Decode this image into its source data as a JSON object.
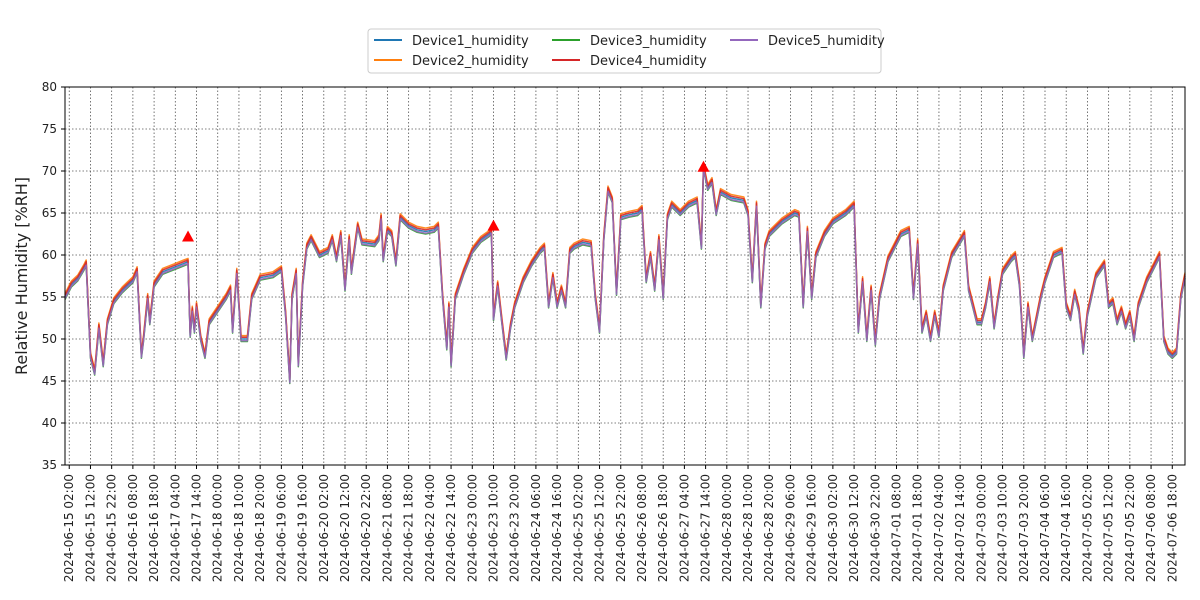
{
  "chart_data": {
    "type": "line",
    "title": "",
    "xlabel": "",
    "ylabel": "Relative Humidity [%RH]",
    "ylim": [
      35,
      80
    ],
    "yticks": [
      35,
      40,
      45,
      50,
      55,
      60,
      65,
      70,
      75,
      80
    ],
    "x_start": "2024-06-15 00:00",
    "x_end": "2024-07-07 00:00",
    "x_tick_labels": [
      "2024-06-15 02:00",
      "2024-06-15 12:00",
      "2024-06-15 22:00",
      "2024-06-16 08:00",
      "2024-06-16 18:00",
      "2024-06-17 04:00",
      "2024-06-17 14:00",
      "2024-06-18 00:00",
      "2024-06-18 10:00",
      "2024-06-18 20:00",
      "2024-06-19 06:00",
      "2024-06-19 16:00",
      "2024-06-20 02:00",
      "2024-06-20 12:00",
      "2024-06-20 22:00",
      "2024-06-21 08:00",
      "2024-06-21 18:00",
      "2024-06-22 04:00",
      "2024-06-22 14:00",
      "2024-06-23 00:00",
      "2024-06-23 10:00",
      "2024-06-23 20:00",
      "2024-06-24 06:00",
      "2024-06-24 16:00",
      "2024-06-25 02:00",
      "2024-06-25 12:00",
      "2024-06-25 22:00",
      "2024-06-26 08:00",
      "2024-06-26 18:00",
      "2024-06-27 04:00",
      "2024-06-27 14:00",
      "2024-06-28 00:00",
      "2024-06-28 10:00",
      "2024-06-28 20:00",
      "2024-06-29 06:00",
      "2024-06-29 16:00",
      "2024-06-30 02:00",
      "2024-06-30 12:00",
      "2024-06-30 22:00",
      "2024-07-01 08:00",
      "2024-07-01 18:00",
      "2024-07-02 04:00",
      "2024-07-02 14:00",
      "2024-07-03 00:00",
      "2024-07-03 10:00",
      "2024-07-03 20:00",
      "2024-07-04 06:00",
      "2024-07-04 16:00",
      "2024-07-05 02:00",
      "2024-07-05 12:00",
      "2024-07-05 22:00",
      "2024-07-06 08:00",
      "2024-07-06 18:00"
    ],
    "grid": true,
    "legend_position": "top-center",
    "base_series": [
      [
        "2024-06-15 00:00",
        55.0
      ],
      [
        "2024-06-15 03:00",
        56.5
      ],
      [
        "2024-06-15 06:00",
        57.2
      ],
      [
        "2024-06-15 09:00",
        58.5
      ],
      [
        "2024-06-15 10:00",
        59.0
      ],
      [
        "2024-06-15 12:00",
        48.0
      ],
      [
        "2024-06-15 14:00",
        46.0
      ],
      [
        "2024-06-15 16:00",
        51.5
      ],
      [
        "2024-06-15 18:00",
        47.0
      ],
      [
        "2024-06-15 20:00",
        52.0
      ],
      [
        "2024-06-15 23:00",
        54.5
      ],
      [
        "2024-06-16 03:00",
        55.8
      ],
      [
        "2024-06-16 08:00",
        57.0
      ],
      [
        "2024-06-16 10:00",
        58.2
      ],
      [
        "2024-06-16 12:00",
        48.0
      ],
      [
        "2024-06-16 13:00",
        50.0
      ],
      [
        "2024-06-16 15:00",
        55.0
      ],
      [
        "2024-06-16 16:00",
        52.0
      ],
      [
        "2024-06-16 18:00",
        56.5
      ],
      [
        "2024-06-16 22:00",
        58.0
      ],
      [
        "2024-06-17 04:00",
        58.6
      ],
      [
        "2024-06-17 08:00",
        59.0
      ],
      [
        "2024-06-17 10:00",
        59.2
      ],
      [
        "2024-06-17 11:00",
        50.5
      ],
      [
        "2024-06-17 12:00",
        53.5
      ],
      [
        "2024-06-17 13:00",
        51.0
      ],
      [
        "2024-06-17 14:00",
        54.0
      ],
      [
        "2024-06-17 16:00",
        50.0
      ],
      [
        "2024-06-17 18:00",
        48.0
      ],
      [
        "2024-06-17 20:00",
        52.0
      ],
      [
        "2024-06-18 00:00",
        53.5
      ],
      [
        "2024-06-18 04:00",
        55.0
      ],
      [
        "2024-06-18 06:00",
        56.0
      ],
      [
        "2024-06-18 07:00",
        51.0
      ],
      [
        "2024-06-18 09:00",
        58.0
      ],
      [
        "2024-06-18 11:00",
        50.0
      ],
      [
        "2024-06-18 14:00",
        50.0
      ],
      [
        "2024-06-18 16:00",
        55.0
      ],
      [
        "2024-06-18 20:00",
        57.3
      ],
      [
        "2024-06-19 02:00",
        57.6
      ],
      [
        "2024-06-19 06:00",
        58.3
      ],
      [
        "2024-06-19 08:00",
        53.0
      ],
      [
        "2024-06-19 10:00",
        45.0
      ],
      [
        "2024-06-19 11:00",
        55.0
      ],
      [
        "2024-06-19 13:00",
        58.0
      ],
      [
        "2024-06-19 14:00",
        47.0
      ],
      [
        "2024-06-19 16:00",
        56.5
      ],
      [
        "2024-06-19 18:00",
        61.0
      ],
      [
        "2024-06-19 20:00",
        62.0
      ],
      [
        "2024-06-20 00:00",
        60.0
      ],
      [
        "2024-06-20 04:00",
        60.5
      ],
      [
        "2024-06-20 06:00",
        62.0
      ],
      [
        "2024-06-20 08:00",
        59.5
      ],
      [
        "2024-06-20 10:00",
        62.5
      ],
      [
        "2024-06-20 12:00",
        56.0
      ],
      [
        "2024-06-20 14:00",
        62.0
      ],
      [
        "2024-06-20 15:00",
        58.0
      ],
      [
        "2024-06-20 18:00",
        63.5
      ],
      [
        "2024-06-20 20:00",
        61.5
      ],
      [
        "2024-06-21 02:00",
        61.3
      ],
      [
        "2024-06-21 04:00",
        62.0
      ],
      [
        "2024-06-21 05:00",
        64.5
      ],
      [
        "2024-06-21 06:00",
        59.5
      ],
      [
        "2024-06-21 08:00",
        63.0
      ],
      [
        "2024-06-21 10:00",
        62.5
      ],
      [
        "2024-06-21 12:00",
        59.0
      ],
      [
        "2024-06-21 14:00",
        64.5
      ],
      [
        "2024-06-21 18:00",
        63.5
      ],
      [
        "2024-06-21 22:00",
        63.0
      ],
      [
        "2024-06-22 02:00",
        62.8
      ],
      [
        "2024-06-22 06:00",
        63.0
      ],
      [
        "2024-06-22 08:00",
        63.5
      ],
      [
        "2024-06-22 10:00",
        55.0
      ],
      [
        "2024-06-22 12:00",
        49.0
      ],
      [
        "2024-06-22 13:00",
        54.0
      ],
      [
        "2024-06-22 14:00",
        47.0
      ],
      [
        "2024-06-22 16:00",
        55.0
      ],
      [
        "2024-06-22 20:00",
        58.0
      ],
      [
        "2024-06-23 00:00",
        60.5
      ],
      [
        "2024-06-23 04:00",
        61.8
      ],
      [
        "2024-06-23 08:00",
        62.5
      ],
      [
        "2024-06-23 09:00",
        62.8
      ],
      [
        "2024-06-23 10:00",
        52.5
      ],
      [
        "2024-06-23 12:00",
        56.5
      ],
      [
        "2024-06-23 14:00",
        52.0
      ],
      [
        "2024-06-23 16:00",
        47.8
      ],
      [
        "2024-06-23 18:00",
        51.5
      ],
      [
        "2024-06-23 20:00",
        54.0
      ],
      [
        "2024-06-24 00:00",
        57.0
      ],
      [
        "2024-06-24 04:00",
        59.0
      ],
      [
        "2024-06-24 08:00",
        60.5
      ],
      [
        "2024-06-24 10:00",
        61.0
      ],
      [
        "2024-06-24 12:00",
        54.0
      ],
      [
        "2024-06-24 14:00",
        57.5
      ],
      [
        "2024-06-24 16:00",
        54.0
      ],
      [
        "2024-06-24 18:00",
        56.0
      ],
      [
        "2024-06-24 20:00",
        54.0
      ],
      [
        "2024-06-24 22:00",
        60.5
      ],
      [
        "2024-06-25 00:00",
        61.0
      ],
      [
        "2024-06-25 04:00",
        61.5
      ],
      [
        "2024-06-25 08:00",
        61.3
      ],
      [
        "2024-06-25 10:00",
        55.0
      ],
      [
        "2024-06-25 12:00",
        51.0
      ],
      [
        "2024-06-25 14:00",
        62.0
      ],
      [
        "2024-06-25 16:00",
        67.8
      ],
      [
        "2024-06-25 18:00",
        66.5
      ],
      [
        "2024-06-25 20:00",
        55.5
      ],
      [
        "2024-06-25 22:00",
        64.5
      ],
      [
        "2024-06-26 02:00",
        64.8
      ],
      [
        "2024-06-26 06:00",
        65.0
      ],
      [
        "2024-06-26 08:00",
        65.5
      ],
      [
        "2024-06-26 10:00",
        57.0
      ],
      [
        "2024-06-26 12:00",
        60.0
      ],
      [
        "2024-06-26 14:00",
        56.0
      ],
      [
        "2024-06-26 16:00",
        62.0
      ],
      [
        "2024-06-26 18:00",
        55.0
      ],
      [
        "2024-06-26 20:00",
        64.5
      ],
      [
        "2024-06-26 22:00",
        66.0
      ],
      [
        "2024-06-27 02:00",
        65.0
      ],
      [
        "2024-06-27 06:00",
        66.0
      ],
      [
        "2024-06-27 10:00",
        66.5
      ],
      [
        "2024-06-27 12:00",
        61.0
      ],
      [
        "2024-06-27 13:00",
        70.5
      ],
      [
        "2024-06-27 15:00",
        68.0
      ],
      [
        "2024-06-27 17:00",
        68.8
      ],
      [
        "2024-06-27 19:00",
        65.0
      ],
      [
        "2024-06-27 21:00",
        67.5
      ],
      [
        "2024-06-28 02:00",
        66.8
      ],
      [
        "2024-06-28 08:00",
        66.5
      ],
      [
        "2024-06-28 10:00",
        65.0
      ],
      [
        "2024-06-28 12:00",
        57.0
      ],
      [
        "2024-06-28 14:00",
        66.0
      ],
      [
        "2024-06-28 16:00",
        54.0
      ],
      [
        "2024-06-28 18:00",
        61.0
      ],
      [
        "2024-06-28 20:00",
        62.5
      ],
      [
        "2024-06-29 02:00",
        64.0
      ],
      [
        "2024-06-29 08:00",
        65.0
      ],
      [
        "2024-06-29 10:00",
        64.8
      ],
      [
        "2024-06-29 12:00",
        54.0
      ],
      [
        "2024-06-29 14:00",
        63.0
      ],
      [
        "2024-06-29 16:00",
        55.0
      ],
      [
        "2024-06-29 18:00",
        60.0
      ],
      [
        "2024-06-29 22:00",
        62.5
      ],
      [
        "2024-06-30 02:00",
        64.0
      ],
      [
        "2024-06-30 08:00",
        65.0
      ],
      [
        "2024-06-30 12:00",
        66.0
      ],
      [
        "2024-06-30 14:00",
        51.0
      ],
      [
        "2024-06-30 16:00",
        57.0
      ],
      [
        "2024-06-30 18:00",
        50.0
      ],
      [
        "2024-06-30 20:00",
        56.0
      ],
      [
        "2024-06-30 22:00",
        49.5
      ],
      [
        "2024-07-01 00:00",
        55.0
      ],
      [
        "2024-07-01 04:00",
        59.5
      ],
      [
        "2024-07-01 10:00",
        62.5
      ],
      [
        "2024-07-01 14:00",
        63.0
      ],
      [
        "2024-07-01 16:00",
        55.0
      ],
      [
        "2024-07-01 18:00",
        61.5
      ],
      [
        "2024-07-01 20:00",
        51.0
      ],
      [
        "2024-07-01 22:00",
        53.0
      ],
      [
        "2024-07-02 00:00",
        50.0
      ],
      [
        "2024-07-02 02:00",
        53.0
      ],
      [
        "2024-07-02 04:00",
        50.5
      ],
      [
        "2024-07-02 06:00",
        56.0
      ],
      [
        "2024-07-02 10:00",
        60.0
      ],
      [
        "2024-07-02 16:00",
        62.5
      ],
      [
        "2024-07-02 18:00",
        56.0
      ],
      [
        "2024-07-02 20:00",
        54.0
      ],
      [
        "2024-07-02 22:00",
        52.0
      ],
      [
        "2024-07-03 00:00",
        52.0
      ],
      [
        "2024-07-03 02:00",
        54.0
      ],
      [
        "2024-07-03 04:00",
        57.0
      ],
      [
        "2024-07-03 06:00",
        51.5
      ],
      [
        "2024-07-03 08:00",
        55.0
      ],
      [
        "2024-07-03 10:00",
        58.0
      ],
      [
        "2024-07-03 14:00",
        59.5
      ],
      [
        "2024-07-03 16:00",
        60.0
      ],
      [
        "2024-07-03 18:00",
        56.5
      ],
      [
        "2024-07-03 20:00",
        48.0
      ],
      [
        "2024-07-03 22:00",
        54.0
      ],
      [
        "2024-07-04 00:00",
        50.0
      ],
      [
        "2024-07-04 04:00",
        55.0
      ],
      [
        "2024-07-04 06:00",
        57.0
      ],
      [
        "2024-07-04 10:00",
        60.0
      ],
      [
        "2024-07-04 14:00",
        60.5
      ],
      [
        "2024-07-04 16:00",
        54.0
      ],
      [
        "2024-07-04 18:00",
        52.5
      ],
      [
        "2024-07-04 20:00",
        55.5
      ],
      [
        "2024-07-04 22:00",
        53.5
      ],
      [
        "2024-07-05 00:00",
        48.5
      ],
      [
        "2024-07-05 02:00",
        53.0
      ],
      [
        "2024-07-05 06:00",
        57.5
      ],
      [
        "2024-07-05 10:00",
        59.0
      ],
      [
        "2024-07-05 12:00",
        54.0
      ],
      [
        "2024-07-05 14:00",
        54.5
      ],
      [
        "2024-07-05 16:00",
        52.0
      ],
      [
        "2024-07-05 18:00",
        53.5
      ],
      [
        "2024-07-05 20:00",
        51.5
      ],
      [
        "2024-07-05 22:00",
        53.0
      ],
      [
        "2024-07-06 00:00",
        50.0
      ],
      [
        "2024-07-06 02:00",
        54.0
      ],
      [
        "2024-07-06 06:00",
        57.0
      ],
      [
        "2024-07-06 10:00",
        59.0
      ],
      [
        "2024-07-06 12:00",
        60.0
      ],
      [
        "2024-07-06 14:00",
        50.0
      ],
      [
        "2024-07-06 16:00",
        48.5
      ],
      [
        "2024-07-06 18:00",
        48.0
      ],
      [
        "2024-07-06 20:00",
        48.5
      ],
      [
        "2024-07-06 22:00",
        55.0
      ],
      [
        "2024-07-07 00:00",
        57.5
      ]
    ],
    "series": [
      {
        "name": "Device1_humidity",
        "color": "#1f77b4",
        "offset": 0.0
      },
      {
        "name": "Device2_humidity",
        "color": "#ff7f0e",
        "offset": 0.4
      },
      {
        "name": "Device3_humidity",
        "color": "#2ca02c",
        "offset": -0.3
      },
      {
        "name": "Device4_humidity",
        "color": "#d62728",
        "offset": 0.2
      },
      {
        "name": "Device5_humidity",
        "color": "#9467bd",
        "offset": -0.2
      }
    ],
    "markers": [
      {
        "x": "2024-06-17 10:00",
        "y": 62.2,
        "color": "#ff0000",
        "shape": "triangle-up"
      },
      {
        "x": "2024-06-23 10:00",
        "y": 63.5,
        "color": "#ff0000",
        "shape": "triangle-up"
      },
      {
        "x": "2024-06-27 13:00",
        "y": 70.5,
        "color": "#ff0000",
        "shape": "triangle-up"
      }
    ]
  }
}
